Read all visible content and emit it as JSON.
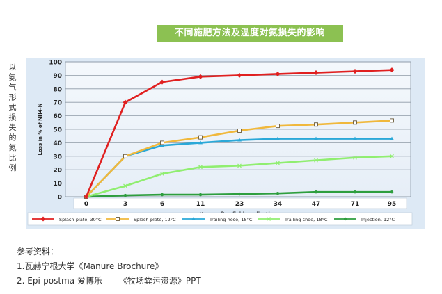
{
  "banner": {
    "title": "不同施肥方法及温度对氨损失的影响",
    "color": "#8cc152"
  },
  "chart_data": {
    "type": "line",
    "title": "",
    "ylabel_outer": "以氨气形式损失的氮比例",
    "ylabel": "Loss in % of NH4-N",
    "xlabel": "Hours after field application",
    "categories": [
      "0",
      "3",
      "6",
      "11",
      "23",
      "34",
      "47",
      "71",
      "95"
    ],
    "ylim": [
      0,
      100
    ],
    "yticks": [
      0,
      10,
      20,
      30,
      40,
      50,
      60,
      70,
      80,
      90,
      100
    ],
    "grid": true,
    "legend": "bottom",
    "series": [
      {
        "name": "Splash-plate, 30°C",
        "color": "#e02020",
        "marker": "diamond",
        "values": [
          0,
          70,
          85,
          89,
          90,
          91,
          92,
          93,
          94
        ]
      },
      {
        "name": "Splash-plate, 12°C",
        "color": "#f0b83c",
        "marker": "square",
        "values": [
          0,
          30,
          40,
          44,
          49,
          52.5,
          53.5,
          55,
          56.5
        ]
      },
      {
        "name": "Trailing-hose, 18°C",
        "color": "#2aa8d8",
        "marker": "triangle",
        "values": [
          0,
          30,
          38,
          40,
          42,
          43,
          43,
          43,
          43
        ]
      },
      {
        "name": "Trailing-shoe, 18°C",
        "color": "#90ee70",
        "marker": "x",
        "values": [
          0,
          8,
          17,
          22,
          23,
          25,
          27,
          29,
          30
        ]
      },
      {
        "name": "Injection, 12°C",
        "color": "#2e9e3e",
        "marker": "circle",
        "values": [
          0,
          1,
          1.5,
          1.5,
          2,
          2.5,
          3.5,
          3.5,
          3.5
        ]
      }
    ]
  },
  "references": {
    "heading": "参考资料：",
    "items": [
      "1.瓦赫宁根大学《Manure Brochure》",
      "2. Epi-postma 爱博乐——《牧场粪污资源》PPT"
    ]
  }
}
